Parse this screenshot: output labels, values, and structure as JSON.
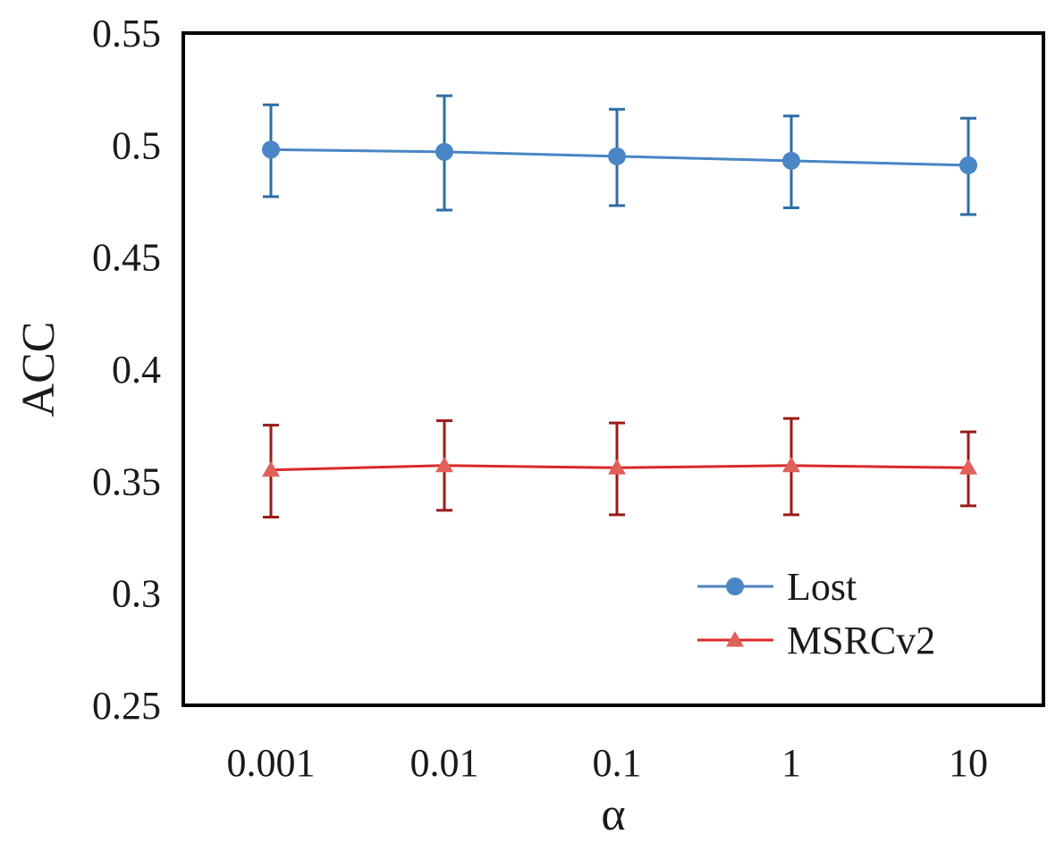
{
  "chart_data": {
    "type": "line",
    "title": "",
    "xlabel": "α",
    "ylabel": "ACC",
    "categories": [
      "0.001",
      "0.01",
      "0.1",
      "1",
      "10"
    ],
    "ylim": [
      0.25,
      0.55
    ],
    "yticks": [
      "0.25",
      "0.3",
      "0.35",
      "0.4",
      "0.45",
      "0.5",
      "0.55"
    ],
    "ytick_values": [
      0.25,
      0.3,
      0.35,
      0.4,
      0.45,
      0.5,
      0.55
    ],
    "grid": false,
    "legend_position": "bottom-right",
    "series": [
      {
        "name": "Lost",
        "marker": "circle",
        "color": "#4a86c5",
        "errcolor": "#2e6da4",
        "values": [
          0.498,
          0.497,
          0.495,
          0.493,
          0.491
        ],
        "err_upper": [
          0.518,
          0.522,
          0.516,
          0.513,
          0.512
        ],
        "err_lower": [
          0.477,
          0.471,
          0.473,
          0.472,
          0.469
        ]
      },
      {
        "name": "MSRCv2",
        "marker": "triangle",
        "color": "#d92a2a",
        "errcolor": "#9a1a1a",
        "markercolor": "#e0605a",
        "values": [
          0.355,
          0.357,
          0.356,
          0.357,
          0.356
        ],
        "err_upper": [
          0.375,
          0.377,
          0.376,
          0.378,
          0.372
        ],
        "err_lower": [
          0.334,
          0.337,
          0.335,
          0.335,
          0.339
        ]
      }
    ]
  }
}
